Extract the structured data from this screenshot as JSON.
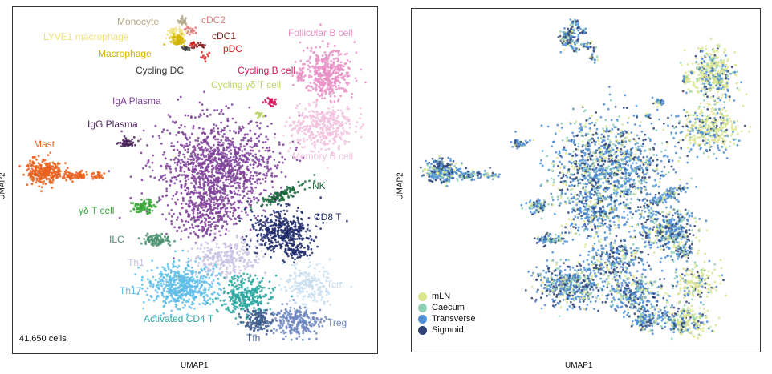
{
  "chart_data": [
    {
      "type": "scatter",
      "xlabel": "UMAP1",
      "ylabel": "UMAP2",
      "annotation": "41,650 cells",
      "grid": false,
      "clusters": [
        {
          "name": "Monocyte",
          "color": "#b5a98a"
        },
        {
          "name": "cDC2",
          "color": "#e07b7b"
        },
        {
          "name": "LYVE1 macrophage",
          "color": "#efe27a"
        },
        {
          "name": "cDC1",
          "color": "#8a1c1c"
        },
        {
          "name": "Macrophage",
          "color": "#d4b400"
        },
        {
          "name": "pDC",
          "color": "#d62222"
        },
        {
          "name": "Cycling DC",
          "color": "#333333"
        },
        {
          "name": "Follicular B cell",
          "color": "#e890c5"
        },
        {
          "name": "Cycling B cell",
          "color": "#d6155c"
        },
        {
          "name": "Cycling γδ T cell",
          "color": "#b7d46a"
        },
        {
          "name": "IgA Plasma",
          "color": "#7e3f98"
        },
        {
          "name": "IgG Plasma",
          "color": "#4a235a"
        },
        {
          "name": "Memory B cell",
          "color": "#f2c1de"
        },
        {
          "name": "Mast",
          "color": "#e8601c"
        },
        {
          "name": "NK",
          "color": "#1a6b3c"
        },
        {
          "name": "CD8 T",
          "color": "#1f2a6b"
        },
        {
          "name": "γδ T cell",
          "color": "#3aa63a"
        },
        {
          "name": "ILC",
          "color": "#4b8f6e"
        },
        {
          "name": "Th1",
          "color": "#c9c2e3"
        },
        {
          "name": "Th17",
          "color": "#5dbde8"
        },
        {
          "name": "Tcm",
          "color": "#c8def0"
        },
        {
          "name": "Activated CD4 T",
          "color": "#2aa7a0"
        },
        {
          "name": "Treg",
          "color": "#6d86be"
        },
        {
          "name": "Tfh",
          "color": "#3d5a8c"
        }
      ]
    },
    {
      "type": "scatter",
      "xlabel": "UMAP1",
      "ylabel": "UMAP2",
      "grid": false,
      "legend_position": "bottom-left",
      "series": [
        {
          "name": "mLN",
          "color": "#dbe58e"
        },
        {
          "name": "Caecum",
          "color": "#8fcfb4"
        },
        {
          "name": "Transverse",
          "color": "#4f8fd6"
        },
        {
          "name": "Sigmoid",
          "color": "#2f4275"
        }
      ]
    }
  ]
}
